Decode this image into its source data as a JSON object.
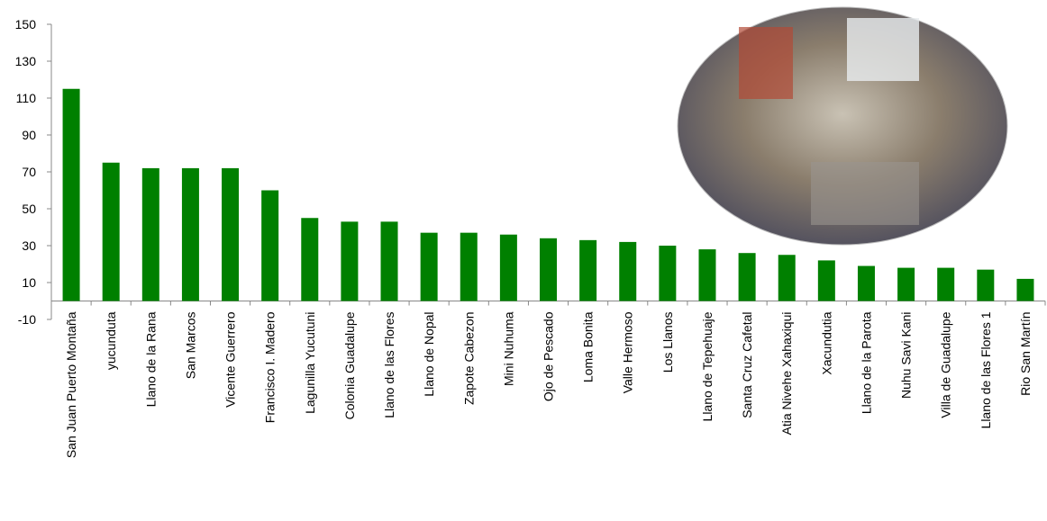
{
  "chart_data": {
    "type": "bar",
    "categories": [
      "San Juan Puerto Montaña",
      "yucunduta",
      "Llano de la Rana",
      "San Marcos",
      "Vicente Guerrero",
      "Francisco I. Madero",
      "Lagunilla Yucutuni",
      "Colonia Guadalupe",
      "Llano de las Flores",
      "Llano de Nopal",
      "Zapote Cabezon",
      "Mini Nuhuma",
      "Ojo de Pescado",
      "Loma Bonita",
      "Valle Hermoso",
      "Los Llanos",
      "Llano de Tepehuaje",
      "Santa Cruz Cafetal",
      "Atia Nivehe Xahaxiqui",
      "Xacundutia",
      "Llano de la Parota",
      "Nuhu Savi Kani",
      "Villa de Guadalupe",
      "Llano de las Flores 1",
      "Rio San Martín"
    ],
    "values": [
      115,
      75,
      72,
      72,
      72,
      60,
      45,
      43,
      43,
      37,
      37,
      36,
      34,
      33,
      32,
      30,
      28,
      26,
      25,
      22,
      19,
      18,
      18,
      17,
      12
    ],
    "color": "#008000",
    "ylim": [
      -10,
      150
    ],
    "yticks": [
      -10,
      10,
      30,
      50,
      70,
      90,
      110,
      130,
      150
    ],
    "grid": false
  }
}
